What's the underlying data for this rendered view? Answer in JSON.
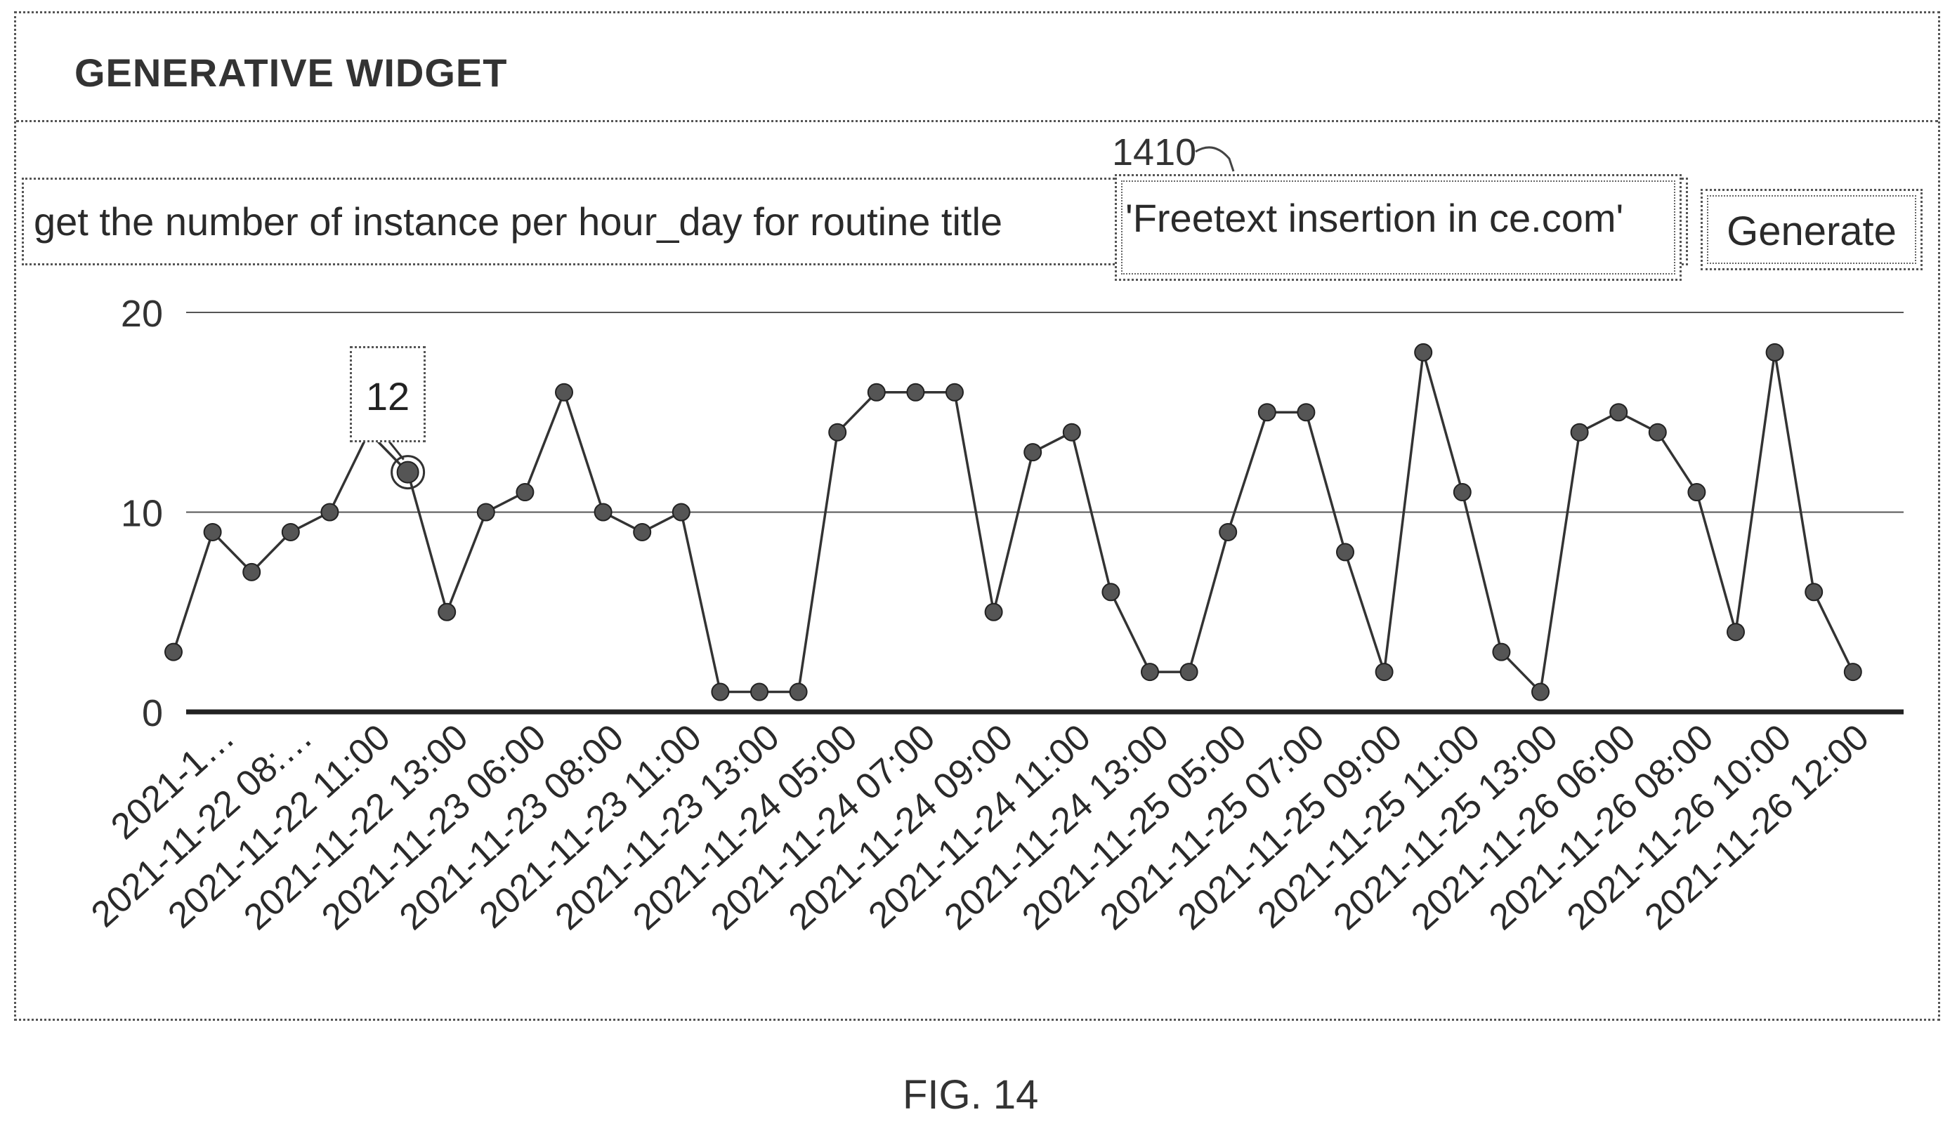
{
  "widget": {
    "title": "GENERATIVE WIDGET",
    "query_text": "get the number of instance per hour_day for routine title",
    "query_highlight": "'Freetext insertion in ce.com'",
    "reference_label": "1410",
    "generate_label": "Generate"
  },
  "tooltip": {
    "value": "12"
  },
  "figure_caption": "FIG. 14",
  "colors": {
    "line": "#333333",
    "marker": "#555555",
    "grid": "#555555",
    "axis": "#222222"
  },
  "chart_data": {
    "type": "line",
    "y_ticks": [
      "0",
      "10",
      "20"
    ],
    "ylim": [
      0,
      20
    ],
    "grid": true,
    "x_tick_labels": [
      "2021-1…",
      "2021-11-22 08:…",
      "2021-11-22 11:00",
      "2021-11-22 13:00",
      "2021-11-23 06:00",
      "2021-11-23 08:00",
      "2021-11-23 11:00",
      "2021-11-23 13:00",
      "2021-11-24 05:00",
      "2021-11-24 07:00",
      "2021-11-24 09:00",
      "2021-11-24 11:00",
      "2021-11-24 13:00",
      "2021-11-25 05:00",
      "2021-11-25 07:00",
      "2021-11-25 09:00",
      "2021-11-25 11:00",
      "2021-11-25 13:00",
      "2021-11-26 06:00",
      "2021-11-26 08:00",
      "2021-11-26 10:00",
      "2021-11-26 12:00"
    ],
    "values": [
      3,
      9,
      7,
      9,
      10,
      14,
      12,
      5,
      10,
      11,
      16,
      10,
      9,
      10,
      1,
      1,
      1,
      14,
      16,
      16,
      16,
      5,
      13,
      14,
      6,
      2,
      2,
      9,
      15,
      15,
      8,
      2,
      18,
      11,
      3,
      1,
      14,
      15,
      14,
      11,
      4,
      18,
      6,
      2
    ],
    "highlighted_index": 6
  }
}
